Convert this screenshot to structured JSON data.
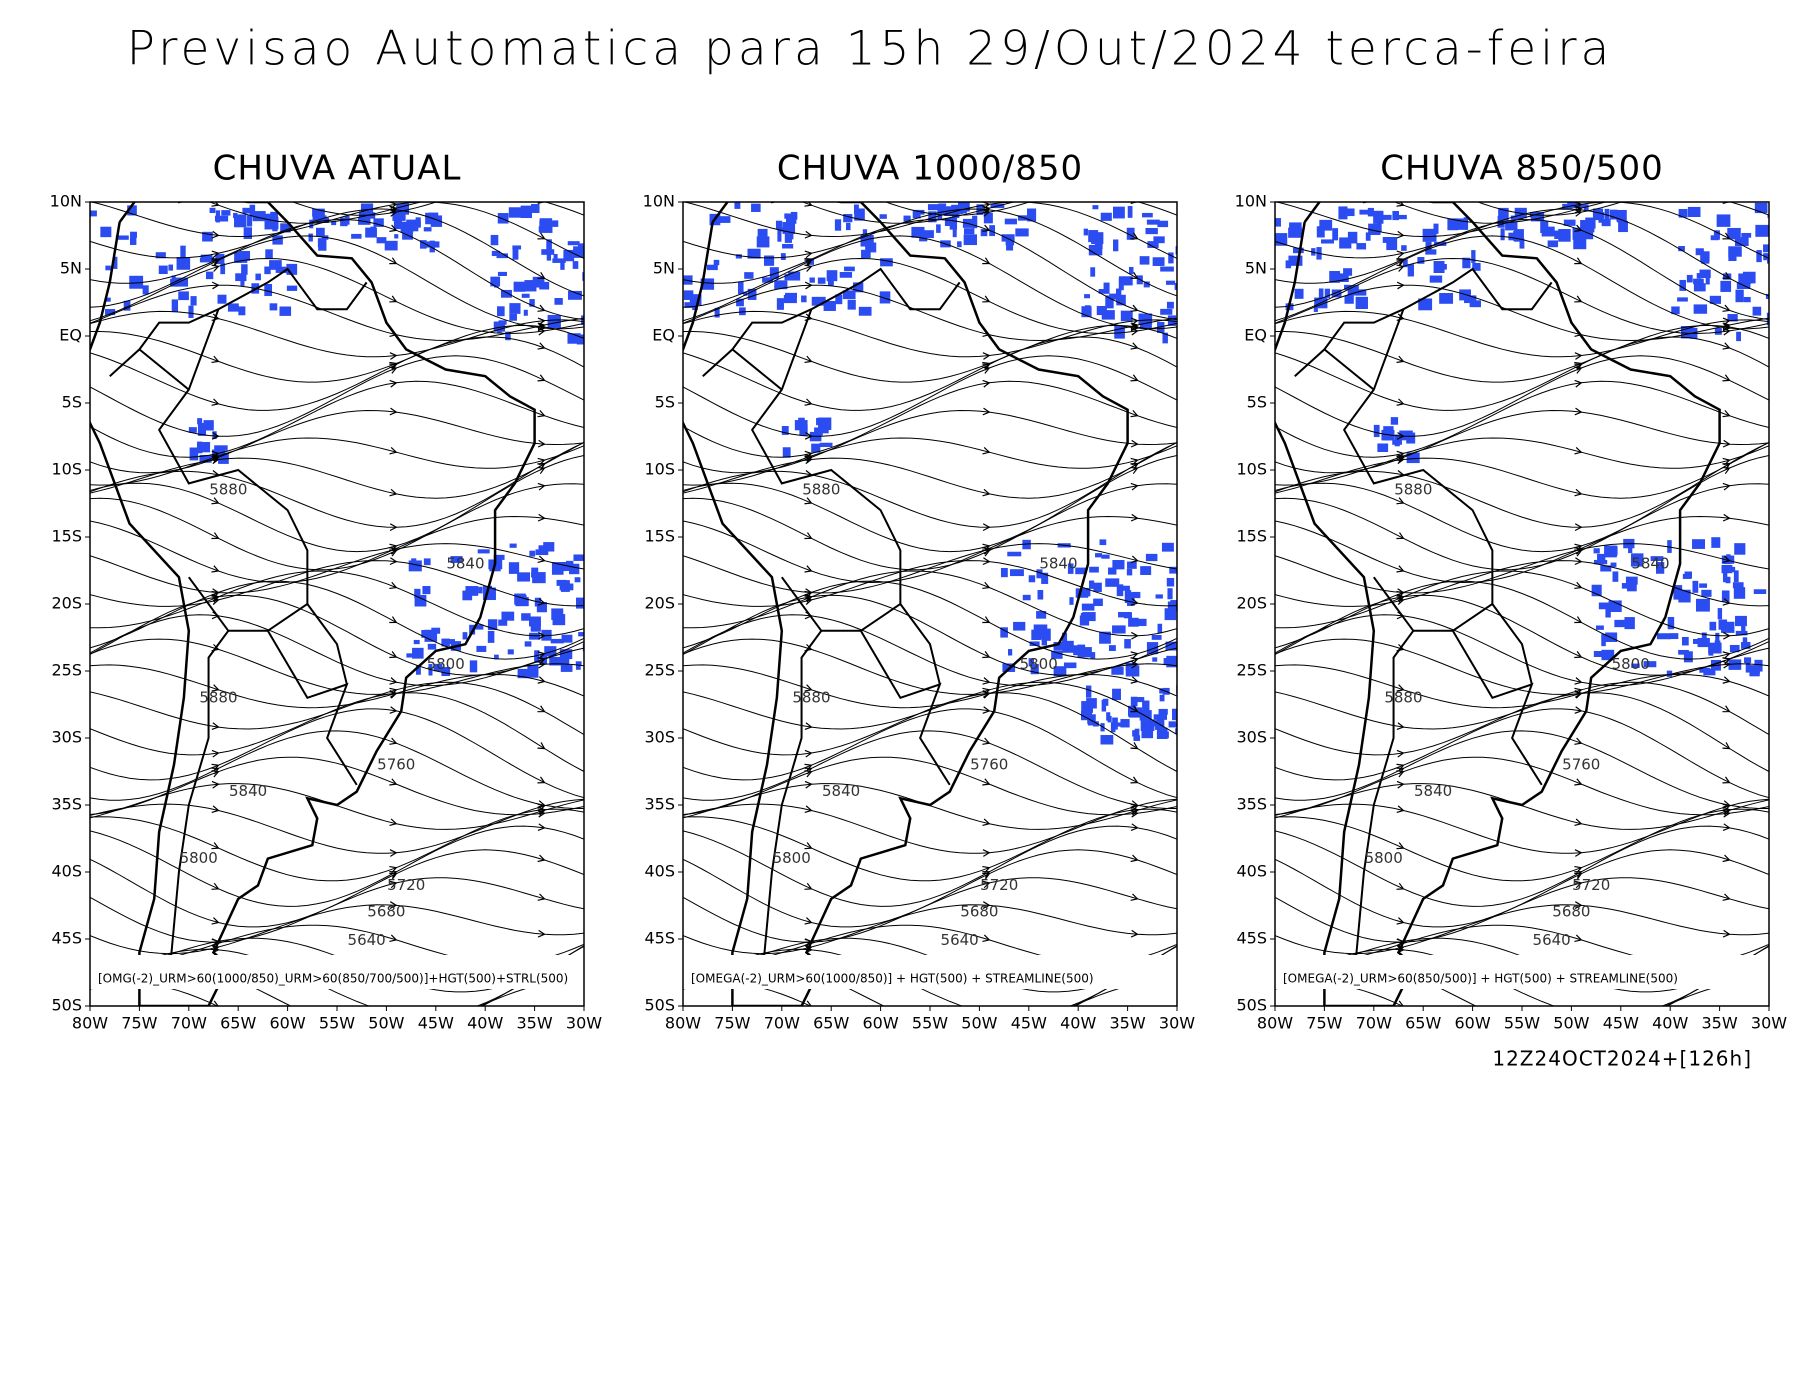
{
  "title": "Previsao Automatica para 15h 29/Out/2024 terca-feira",
  "panels": [
    {
      "title": "CHUVA ATUAL",
      "caption": "[OMG(-2)_URM>60(1000/850)_URM>60(850/700/500)]+HGT(500)+STRL(500)",
      "contour_labels": [
        "5880",
        "5840",
        "5800",
        "5880",
        "5760",
        "5840",
        "5800",
        "5720",
        "5680",
        "5640"
      ]
    },
    {
      "title": "CHUVA 1000/850",
      "caption": "[OMEGA(-2)_URM>60(1000/850)] + HGT(500) + STREAMLINE(500)",
      "contour_labels": [
        "5880",
        "5840",
        "5800",
        "5880",
        "5760",
        "5840",
        "5800",
        "5720",
        "5680",
        "5640"
      ]
    },
    {
      "title": "CHUVA 850/500",
      "caption": "[OMEGA(-2)_URM>60(850/500)] + HGT(500) + STREAMLINE(500)",
      "contour_labels": [
        "5880",
        "5840",
        "5800",
        "5880",
        "5760",
        "5840",
        "5800",
        "5720",
        "5680",
        "5640"
      ]
    }
  ],
  "lat_labels": [
    "10N",
    "5N",
    "EQ",
    "5S",
    "10S",
    "15S",
    "20S",
    "25S",
    "30S",
    "35S",
    "40S",
    "45S",
    "50S"
  ],
  "lon_labels": [
    "80W",
    "75W",
    "70W",
    "65W",
    "60W",
    "55W",
    "50W",
    "45W",
    "40W",
    "35W",
    "30W"
  ],
  "footer": "12Z24OCT2024+[126h]"
}
